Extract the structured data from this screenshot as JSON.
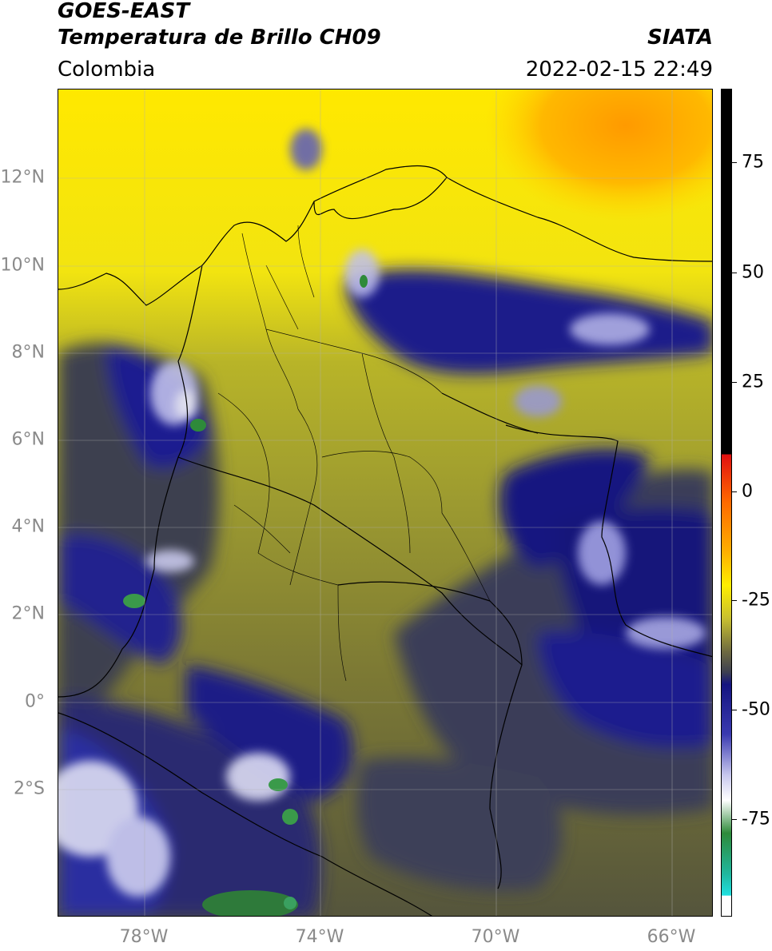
{
  "header": {
    "title_line1": "GOES-EAST",
    "title_line2": "Temperatura de Brillo CH09",
    "source": "SIATA",
    "region": "Colombia",
    "datetime": "2022-02-15 22:49"
  },
  "map": {
    "lat_labels": [
      "12°N",
      "10°N",
      "8°N",
      "6°N",
      "4°N",
      "2°N",
      "0°",
      "2°S"
    ],
    "lon_labels": [
      "78°W",
      "74°W",
      "70°W",
      "66°W"
    ]
  },
  "colorbar": {
    "ticks": [
      "75",
      "50",
      "25",
      "0",
      "-25",
      "-50",
      "-75"
    ],
    "colors": {
      "black": "#000000",
      "red": "#e01010",
      "orange": "#ff9900",
      "yellow": "#ffee00",
      "olive": "#8a8a30",
      "dark_gray": "#3d4050",
      "navy": "#141480",
      "blue": "#2f2fa8",
      "white": "#ffffff",
      "green": "#2e8a3a",
      "teal": "#20b8a0",
      "cyan": "#20e0e0"
    }
  }
}
